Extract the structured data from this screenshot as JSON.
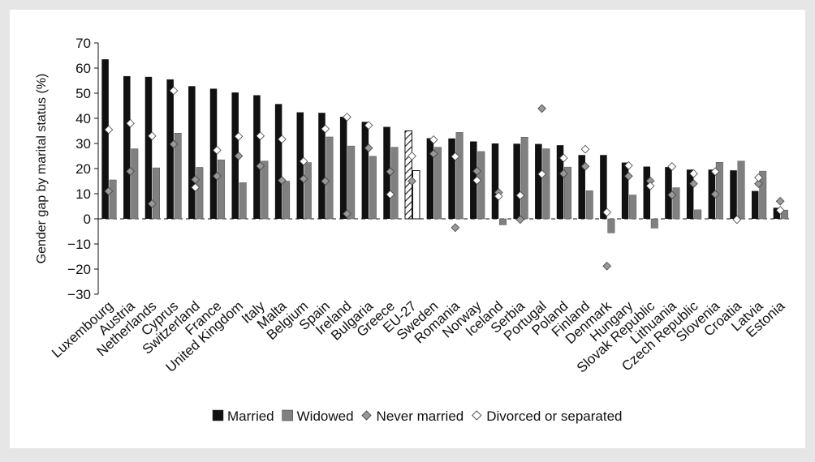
{
  "chart_data": {
    "type": "bar",
    "title": "",
    "xlabel": "",
    "ylabel": "Gender gap by marital status (%)",
    "ylim": [
      -30,
      70
    ],
    "yticks": [
      -30,
      -20,
      -10,
      0,
      10,
      20,
      30,
      40,
      50,
      60,
      70
    ],
    "grid": false,
    "legend_position": "bottom",
    "categories": [
      "Luxembourg",
      "Austria",
      "Netherlands",
      "Cyprus",
      "Switzerland",
      "France",
      "United Kingdom",
      "Italy",
      "Malta",
      "Belgium",
      "Spain",
      "Ireland",
      "Bulgaria",
      "Greece",
      "EU-27",
      "Sweden",
      "Romania",
      "Norway",
      "Iceland",
      "Serbia",
      "Portugal",
      "Poland",
      "Finland",
      "Denmark",
      "Hungary",
      "Slovak Republic",
      "Lithuania",
      "Czech Republic",
      "Slovenia",
      "Croatia",
      "Latvia",
      "Estonia"
    ],
    "highlight_category": "EU-27",
    "series": [
      {
        "name": "Married",
        "marker": "bar",
        "color": "#111111",
        "values": [
          63.5,
          56.8,
          56.5,
          55.5,
          52.8,
          51.8,
          50.3,
          49.2,
          45.7,
          42.4,
          42.2,
          40.6,
          38.6,
          36.6,
          35.0,
          32.1,
          32.0,
          30.8,
          30.0,
          29.9,
          29.8,
          29.3,
          25.4,
          25.4,
          22.4,
          20.8,
          20.6,
          19.6,
          19.6,
          19.3,
          11.1,
          4.4
        ]
      },
      {
        "name": "Widowed",
        "marker": "bar",
        "color": "#808080",
        "values": [
          15.5,
          27.9,
          20.3,
          34.1,
          20.5,
          23.5,
          14.4,
          23.0,
          15.0,
          22.4,
          32.6,
          29.0,
          24.9,
          28.5,
          19.2,
          28.5,
          34.4,
          26.8,
          -2.4,
          32.5,
          27.9,
          20.6,
          11.2,
          -5.6,
          9.5,
          -3.7,
          12.4,
          3.6,
          22.5,
          23.0,
          19.0,
          3.5
        ]
      },
      {
        "name": "Never married",
        "marker": "diamond",
        "color": "#999999",
        "values": [
          11.0,
          18.9,
          6.0,
          29.7,
          15.6,
          17.0,
          25.0,
          21.0,
          15.3,
          15.9,
          15.0,
          2.0,
          28.2,
          18.8,
          15.0,
          25.9,
          -3.5,
          19.0,
          10.5,
          -0.3,
          43.9,
          18.0,
          20.9,
          -18.8,
          17.0,
          15.1,
          9.5,
          14.0,
          9.8,
          -0.3,
          14.0,
          7.0
        ]
      },
      {
        "name": "Divorced or separated",
        "marker": "diamond",
        "color": "#ffffff",
        "values": [
          35.5,
          38.0,
          33.0,
          51.0,
          12.5,
          27.3,
          32.8,
          33.0,
          31.7,
          22.9,
          35.8,
          40.5,
          37.2,
          9.7,
          25.0,
          31.5,
          24.8,
          15.3,
          9.0,
          9.3,
          17.8,
          24.2,
          27.7,
          2.6,
          21.2,
          13.1,
          20.8,
          18.0,
          18.8,
          -0.3,
          16.4,
          3.4
        ]
      }
    ]
  }
}
